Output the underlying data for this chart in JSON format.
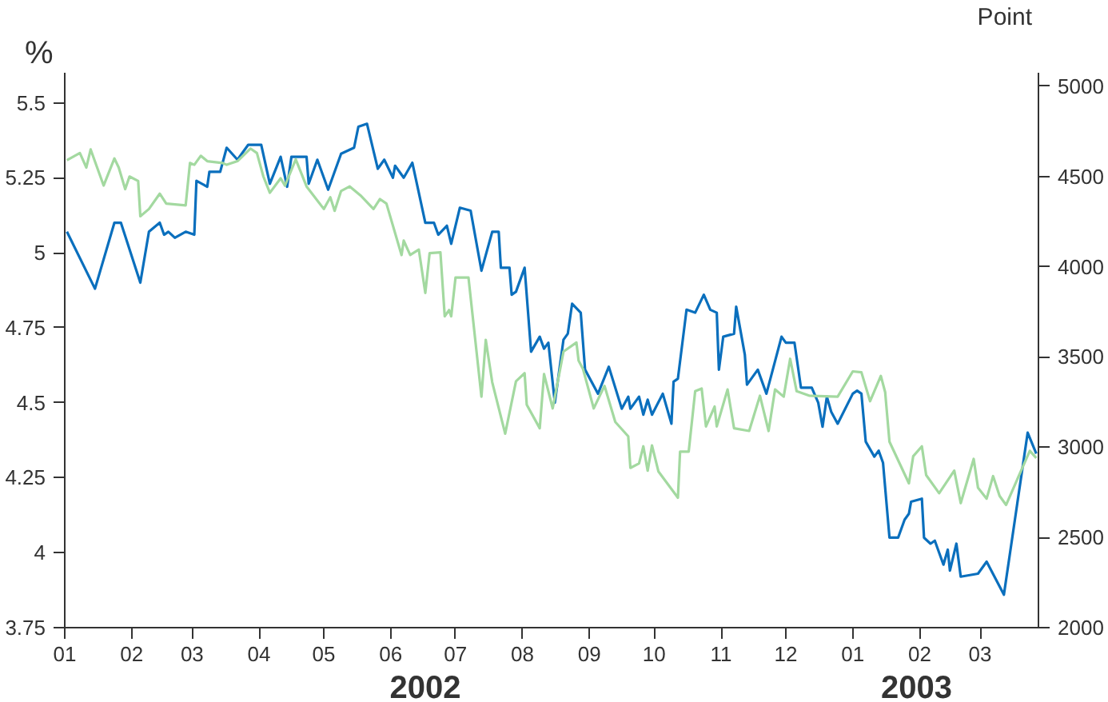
{
  "chart_data": {
    "type": "line",
    "xlabel": null,
    "ylabel": "%",
    "y2label": "Point",
    "xlim": [
      "2002-01-01",
      "2003-03-28"
    ],
    "ylim": [
      3.75,
      5.6
    ],
    "y2lim": [
      2000,
      5075
    ],
    "yticks": [
      3.75,
      4,
      4.25,
      4.5,
      4.75,
      5,
      5.25,
      5.5
    ],
    "y2ticks": [
      2000,
      2500,
      3000,
      3500,
      4000,
      4500,
      5000
    ],
    "xticks": [
      {
        "value": "2002-01-01",
        "label": "01"
      },
      {
        "value": "2002-02-01",
        "label": "02"
      },
      {
        "value": "2002-03-01",
        "label": "03"
      },
      {
        "value": "2002-04-01",
        "label": "04"
      },
      {
        "value": "2002-05-01",
        "label": "05"
      },
      {
        "value": "2002-06-01",
        "label": "06"
      },
      {
        "value": "2002-07-01",
        "label": "07"
      },
      {
        "value": "2002-08-01",
        "label": "08"
      },
      {
        "value": "2002-09-01",
        "label": "09"
      },
      {
        "value": "2002-10-01",
        "label": "10"
      },
      {
        "value": "2002-11-01",
        "label": "11"
      },
      {
        "value": "2002-12-01",
        "label": "12"
      },
      {
        "value": "2003-01-01",
        "label": "01"
      },
      {
        "value": "2003-02-01",
        "label": "02"
      },
      {
        "value": "2003-03-01",
        "label": "03"
      }
    ],
    "annotations": [
      "2002",
      "2003"
    ],
    "grid": false,
    "marker": "none",
    "line_style": "solid",
    "series": [
      {
        "color": "#0a6fbd",
        "axis": "y",
        "x": [
          "2002-01-02",
          "2002-01-15",
          "2002-01-24",
          "2002-01-27",
          "2002-02-05",
          "2002-02-09",
          "2002-02-14",
          "2002-02-16",
          "2002-02-18",
          "2002-02-21",
          "2002-02-26",
          "2002-03-02",
          "2002-03-03",
          "2002-03-08",
          "2002-03-09",
          "2002-03-14",
          "2002-03-17",
          "2002-03-22",
          "2002-03-27",
          "2002-04-02",
          "2002-04-06",
          "2002-04-11",
          "2002-04-14",
          "2002-04-16",
          "2002-04-23",
          "2002-04-24",
          "2002-04-28",
          "2002-05-03",
          "2002-05-09",
          "2002-05-15",
          "2002-05-17",
          "2002-05-21",
          "2002-05-26",
          "2002-05-29",
          "2002-06-02",
          "2002-06-03",
          "2002-06-07",
          "2002-06-11",
          "2002-06-17",
          "2002-06-21",
          "2002-06-23",
          "2002-06-27",
          "2002-06-29",
          "2002-07-03",
          "2002-07-08",
          "2002-07-13",
          "2002-07-18",
          "2002-07-21",
          "2002-07-22",
          "2002-07-26",
          "2002-07-27",
          "2002-07-29",
          "2002-08-02",
          "2002-08-05",
          "2002-08-09",
          "2002-08-11",
          "2002-08-13",
          "2002-08-16",
          "2002-08-20",
          "2002-08-22",
          "2002-08-24",
          "2002-08-28",
          "2002-08-30",
          "2002-09-05",
          "2002-09-10",
          "2002-09-16",
          "2002-09-19",
          "2002-09-20",
          "2002-09-24",
          "2002-09-26",
          "2002-09-28",
          "2002-09-30",
          "2002-10-05",
          "2002-10-09",
          "2002-10-10",
          "2002-10-12",
          "2002-10-16",
          "2002-10-20",
          "2002-10-24",
          "2002-10-27",
          "2002-10-30",
          "2002-10-31",
          "2002-11-02",
          "2002-11-07",
          "2002-11-08",
          "2002-11-12",
          "2002-11-13",
          "2002-11-18",
          "2002-11-22",
          "2002-11-29",
          "2002-12-01",
          "2002-12-05",
          "2002-12-08",
          "2002-12-13",
          "2002-12-16",
          "2002-12-18",
          "2002-12-20",
          "2002-12-22",
          "2002-12-25",
          "2003-01-01",
          "2003-01-03",
          "2003-01-05",
          "2003-01-07",
          "2003-01-11",
          "2003-01-13",
          "2003-01-15",
          "2003-01-18",
          "2003-01-22",
          "2003-01-25",
          "2003-01-27",
          "2003-01-28",
          "2003-02-02",
          "2003-02-03",
          "2003-02-06",
          "2003-02-08",
          "2003-02-10",
          "2003-02-12",
          "2003-02-14",
          "2003-02-15",
          "2003-02-18",
          "2003-02-20",
          "2003-02-28",
          "2003-03-04",
          "2003-03-12",
          "2003-03-23",
          "2003-03-27"
        ],
        "values": [
          5.07,
          4.88,
          5.1,
          5.1,
          4.9,
          5.07,
          5.1,
          5.06,
          5.07,
          5.05,
          5.07,
          5.06,
          5.24,
          5.22,
          5.27,
          5.27,
          5.35,
          5.31,
          5.36,
          5.36,
          5.23,
          5.32,
          5.22,
          5.32,
          5.32,
          5.23,
          5.31,
          5.21,
          5.33,
          5.35,
          5.42,
          5.43,
          5.28,
          5.31,
          5.25,
          5.29,
          5.25,
          5.3,
          5.1,
          5.1,
          5.06,
          5.09,
          5.03,
          5.15,
          5.14,
          4.94,
          5.07,
          5.07,
          4.95,
          4.95,
          4.86,
          4.87,
          4.95,
          4.67,
          4.72,
          4.68,
          4.7,
          4.5,
          4.71,
          4.73,
          4.83,
          4.8,
          4.61,
          4.53,
          4.62,
          4.48,
          4.52,
          4.48,
          4.52,
          4.46,
          4.51,
          4.46,
          4.53,
          4.43,
          4.57,
          4.58,
          4.81,
          4.8,
          4.86,
          4.81,
          4.8,
          4.61,
          4.72,
          4.73,
          4.82,
          4.66,
          4.56,
          4.61,
          4.53,
          4.72,
          4.7,
          4.7,
          4.55,
          4.55,
          4.5,
          4.42,
          4.52,
          4.47,
          4.43,
          4.53,
          4.54,
          4.53,
          4.37,
          4.32,
          4.34,
          4.3,
          4.05,
          4.05,
          4.11,
          4.13,
          4.17,
          4.18,
          4.05,
          4.03,
          4.04,
          4,
          3.96,
          4.01,
          3.94,
          4.03,
          3.92,
          3.93,
          3.97,
          3.86,
          4.4,
          4.33
        ]
      },
      {
        "color": "#a3d9a0",
        "axis": "y2",
        "x": [
          "2002-01-02",
          "2002-01-08",
          "2002-01-11",
          "2002-01-13",
          "2002-01-19",
          "2002-01-24",
          "2002-01-26",
          "2002-01-29",
          "2002-01-31",
          "2002-02-04",
          "2002-02-05",
          "2002-02-09",
          "2002-02-14",
          "2002-02-17",
          "2002-02-26",
          "2002-02-28",
          "2002-03-02",
          "2002-03-05",
          "2002-03-08",
          "2002-03-15",
          "2002-03-17",
          "2002-03-22",
          "2002-03-28",
          "2002-03-31",
          "2002-04-03",
          "2002-04-06",
          "2002-04-11",
          "2002-04-13",
          "2002-04-18",
          "2002-04-23",
          "2002-05-01",
          "2002-05-04",
          "2002-05-06",
          "2002-05-09",
          "2002-05-13",
          "2002-05-18",
          "2002-05-24",
          "2002-05-27",
          "2002-05-30",
          "2002-06-06",
          "2002-06-07",
          "2002-06-10",
          "2002-06-14",
          "2002-06-17",
          "2002-06-19",
          "2002-06-24",
          "2002-06-26",
          "2002-06-28",
          "2002-06-29",
          "2002-07-01",
          "2002-07-07",
          "2002-07-13",
          "2002-07-15",
          "2002-07-18",
          "2002-07-24",
          "2002-07-29",
          "2002-08-02",
          "2002-08-03",
          "2002-08-09",
          "2002-08-11",
          "2002-08-15",
          "2002-08-20",
          "2002-08-26",
          "2002-08-27",
          "2002-08-29",
          "2002-09-03",
          "2002-09-08",
          "2002-09-13",
          "2002-09-19",
          "2002-09-20",
          "2002-09-24",
          "2002-09-26",
          "2002-09-28",
          "2002-09-30",
          "2002-10-03",
          "2002-10-12",
          "2002-10-13",
          "2002-10-17",
          "2002-10-20",
          "2002-10-23",
          "2002-10-25",
          "2002-10-29",
          "2002-10-30",
          "2002-11-04",
          "2002-11-07",
          "2002-11-14",
          "2002-11-19",
          "2002-11-23",
          "2002-11-26",
          "2002-11-30",
          "2002-12-03",
          "2002-12-06",
          "2002-12-12",
          "2002-12-25",
          "2003-01-01",
          "2003-01-05",
          "2003-01-09",
          "2003-01-14",
          "2003-01-16",
          "2003-01-18",
          "2003-01-27",
          "2003-01-29",
          "2003-02-02",
          "2003-02-04",
          "2003-02-10",
          "2003-02-17",
          "2003-02-20",
          "2003-02-26",
          "2003-02-28",
          "2003-03-04",
          "2003-03-07",
          "2003-03-10",
          "2003-03-13",
          "2003-03-24",
          "2003-03-27"
        ],
        "values": [
          4590,
          4630,
          4550,
          4650,
          4450,
          4600,
          4550,
          4430,
          4500,
          4475,
          4280,
          4320,
          4405,
          4350,
          4340,
          4575,
          4565,
          4615,
          4585,
          4575,
          4565,
          4585,
          4655,
          4630,
          4500,
          4410,
          4490,
          4450,
          4595,
          4445,
          4320,
          4385,
          4310,
          4420,
          4445,
          4395,
          4320,
          4375,
          4350,
          4065,
          4145,
          4065,
          4095,
          3855,
          4075,
          4080,
          3725,
          3760,
          3725,
          3940,
          3940,
          3280,
          3595,
          3360,
          3075,
          3365,
          3410,
          3235,
          3105,
          3405,
          3215,
          3530,
          3580,
          3480,
          3435,
          3215,
          3340,
          3140,
          3060,
          2885,
          2910,
          3005,
          2870,
          3010,
          2865,
          2720,
          2975,
          2975,
          3310,
          3325,
          3115,
          3225,
          3115,
          3320,
          3105,
          3090,
          3285,
          3090,
          3320,
          3280,
          3490,
          3310,
          3285,
          3280,
          3420,
          3415,
          3255,
          3395,
          3305,
          3030,
          2800,
          2950,
          3005,
          2845,
          2745,
          2870,
          2690,
          2935,
          2775,
          2715,
          2840,
          2730,
          2680,
          2980,
          2940
        ]
      }
    ]
  }
}
